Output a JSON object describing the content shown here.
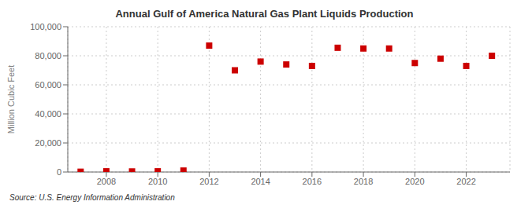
{
  "chart_data": {
    "type": "scatter",
    "title": "Annual Gulf of America Natural Gas Plant Liquids Production",
    "y_label": "Million Cubic Feet",
    "annotations": [
      "Source: U.S. Energy Information Administration"
    ],
    "x": [
      2007,
      2008,
      2009,
      2010,
      2011,
      2012,
      2013,
      2014,
      2015,
      2016,
      2017,
      2018,
      2019,
      2020,
      2021,
      2022,
      2023
    ],
    "values": [
      200,
      500,
      400,
      500,
      1000,
      87000,
      70000,
      76000,
      74000,
      73000,
      85500,
      85000,
      85000,
      75000,
      78000,
      73000,
      80000
    ],
    "color": "#cc0000",
    "marker": "square",
    "xlim": [
      2006.5,
      2023.7
    ],
    "xticks": [
      2008,
      2010,
      2012,
      2014,
      2016,
      2018,
      2020,
      2022
    ],
    "ylim": [
      0,
      100000
    ],
    "yticks": [
      0,
      {
        "value": 20000,
        "label": "20,000"
      },
      {
        "value": 40000,
        "label": "40,000"
      },
      {
        "value": 60000,
        "label": "60,000"
      },
      {
        "value": 80000,
        "label": "80,000"
      },
      {
        "value": 100000,
        "label": "100,000"
      }
    ],
    "grid": true
  }
}
